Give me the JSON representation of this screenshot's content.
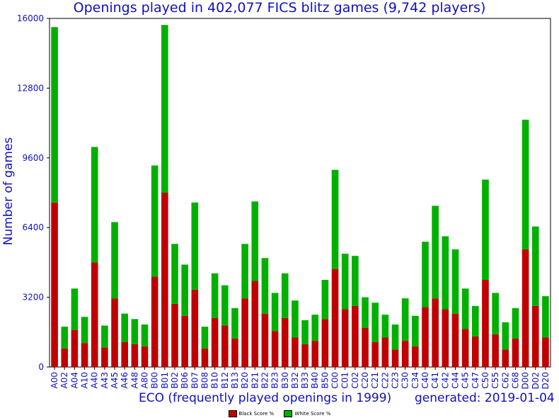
{
  "chart_data": {
    "type": "bar",
    "stacked": true,
    "title": "Openings played in 402,077 FICS blitz games (9,742 players)",
    "xlabel": "ECO (frequently played openings in 1999)",
    "ylabel": "Number of games",
    "note": "generated: 2019-01-04",
    "ylim": [
      0,
      16000
    ],
    "yticks": [
      0,
      3200,
      6400,
      9600,
      12800,
      16000
    ],
    "grid": false,
    "legend_position": "bottom-center",
    "categories": [
      "A00",
      "A02",
      "A04",
      "A10",
      "A40",
      "A43",
      "A45",
      "A46",
      "A48",
      "A80",
      "B00",
      "B01",
      "B02",
      "B06",
      "B07",
      "B08",
      "B10",
      "B12",
      "B13",
      "B20",
      "B21",
      "B22",
      "B23",
      "B30",
      "B32",
      "B33",
      "B40",
      "B50",
      "C00",
      "C01",
      "C02",
      "C20",
      "C21",
      "C22",
      "C23",
      "C30",
      "C34",
      "C40",
      "C41",
      "C42",
      "C44",
      "C45",
      "C47",
      "C50",
      "C55",
      "C62",
      "C68",
      "D00",
      "D02",
      "D20"
    ],
    "series": [
      {
        "name": "Black Score %",
        "color": "#c00000",
        "values": [
          7550,
          850,
          1700,
          1100,
          4800,
          900,
          3150,
          1150,
          1050,
          950,
          4150,
          8000,
          2900,
          2350,
          3550,
          850,
          2250,
          1900,
          1300,
          3150,
          3950,
          2450,
          1650,
          2250,
          1350,
          1050,
          1200,
          2200,
          4500,
          2650,
          2800,
          1800,
          1150,
          1350,
          800,
          1200,
          950,
          2750,
          3150,
          2650,
          2450,
          1750,
          1400,
          4000,
          1500,
          800,
          1300,
          5400,
          2800,
          1350
        ]
      },
      {
        "name": "White Score %",
        "color": "#00b000",
        "values": [
          8050,
          1000,
          1900,
          1200,
          5300,
          1000,
          3500,
          1300,
          1150,
          1000,
          5100,
          7700,
          2750,
          2350,
          4000,
          1000,
          2050,
          1850,
          1400,
          2500,
          3650,
          2550,
          1750,
          2050,
          1700,
          1100,
          1200,
          1800,
          4550,
          2550,
          2300,
          1400,
          1800,
          1050,
          1150,
          1950,
          1400,
          3000,
          4250,
          3350,
          2950,
          1850,
          1400,
          4600,
          1900,
          1250,
          1400,
          5950,
          3650,
          1900
        ]
      }
    ]
  }
}
